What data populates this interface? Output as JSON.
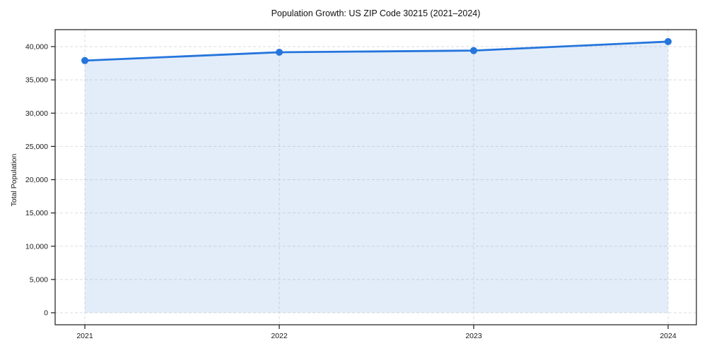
{
  "figure": {
    "background": "#ffffff"
  },
  "chart_data": {
    "type": "area",
    "title": "Population Growth: US ZIP Code 30215 (2021–2024)",
    "xlabel": "",
    "ylabel": "Total Population",
    "categories": [
      "2021",
      "2022",
      "2023",
      "2024"
    ],
    "series": [
      {
        "name": "Total Population",
        "values": [
          37900,
          39150,
          39400,
          40750
        ]
      }
    ],
    "ylim": [
      0,
      40000
    ],
    "ytick_step": 5000,
    "ytick_labels": [
      "0",
      "5,000",
      "10,000",
      "15,000",
      "20,000",
      "25,000",
      "30,000",
      "35,000",
      "40,000"
    ],
    "grid": "dashed-both-axes",
    "legend_position": "none",
    "marker": "circle",
    "colors": {
      "line": "#2575dc",
      "marker": "#2575dc",
      "fill": "rgba(37,117,220,0.13)",
      "grid": "#dedede",
      "axis": "#1a1a1a",
      "text": "#1a1a1a"
    }
  }
}
